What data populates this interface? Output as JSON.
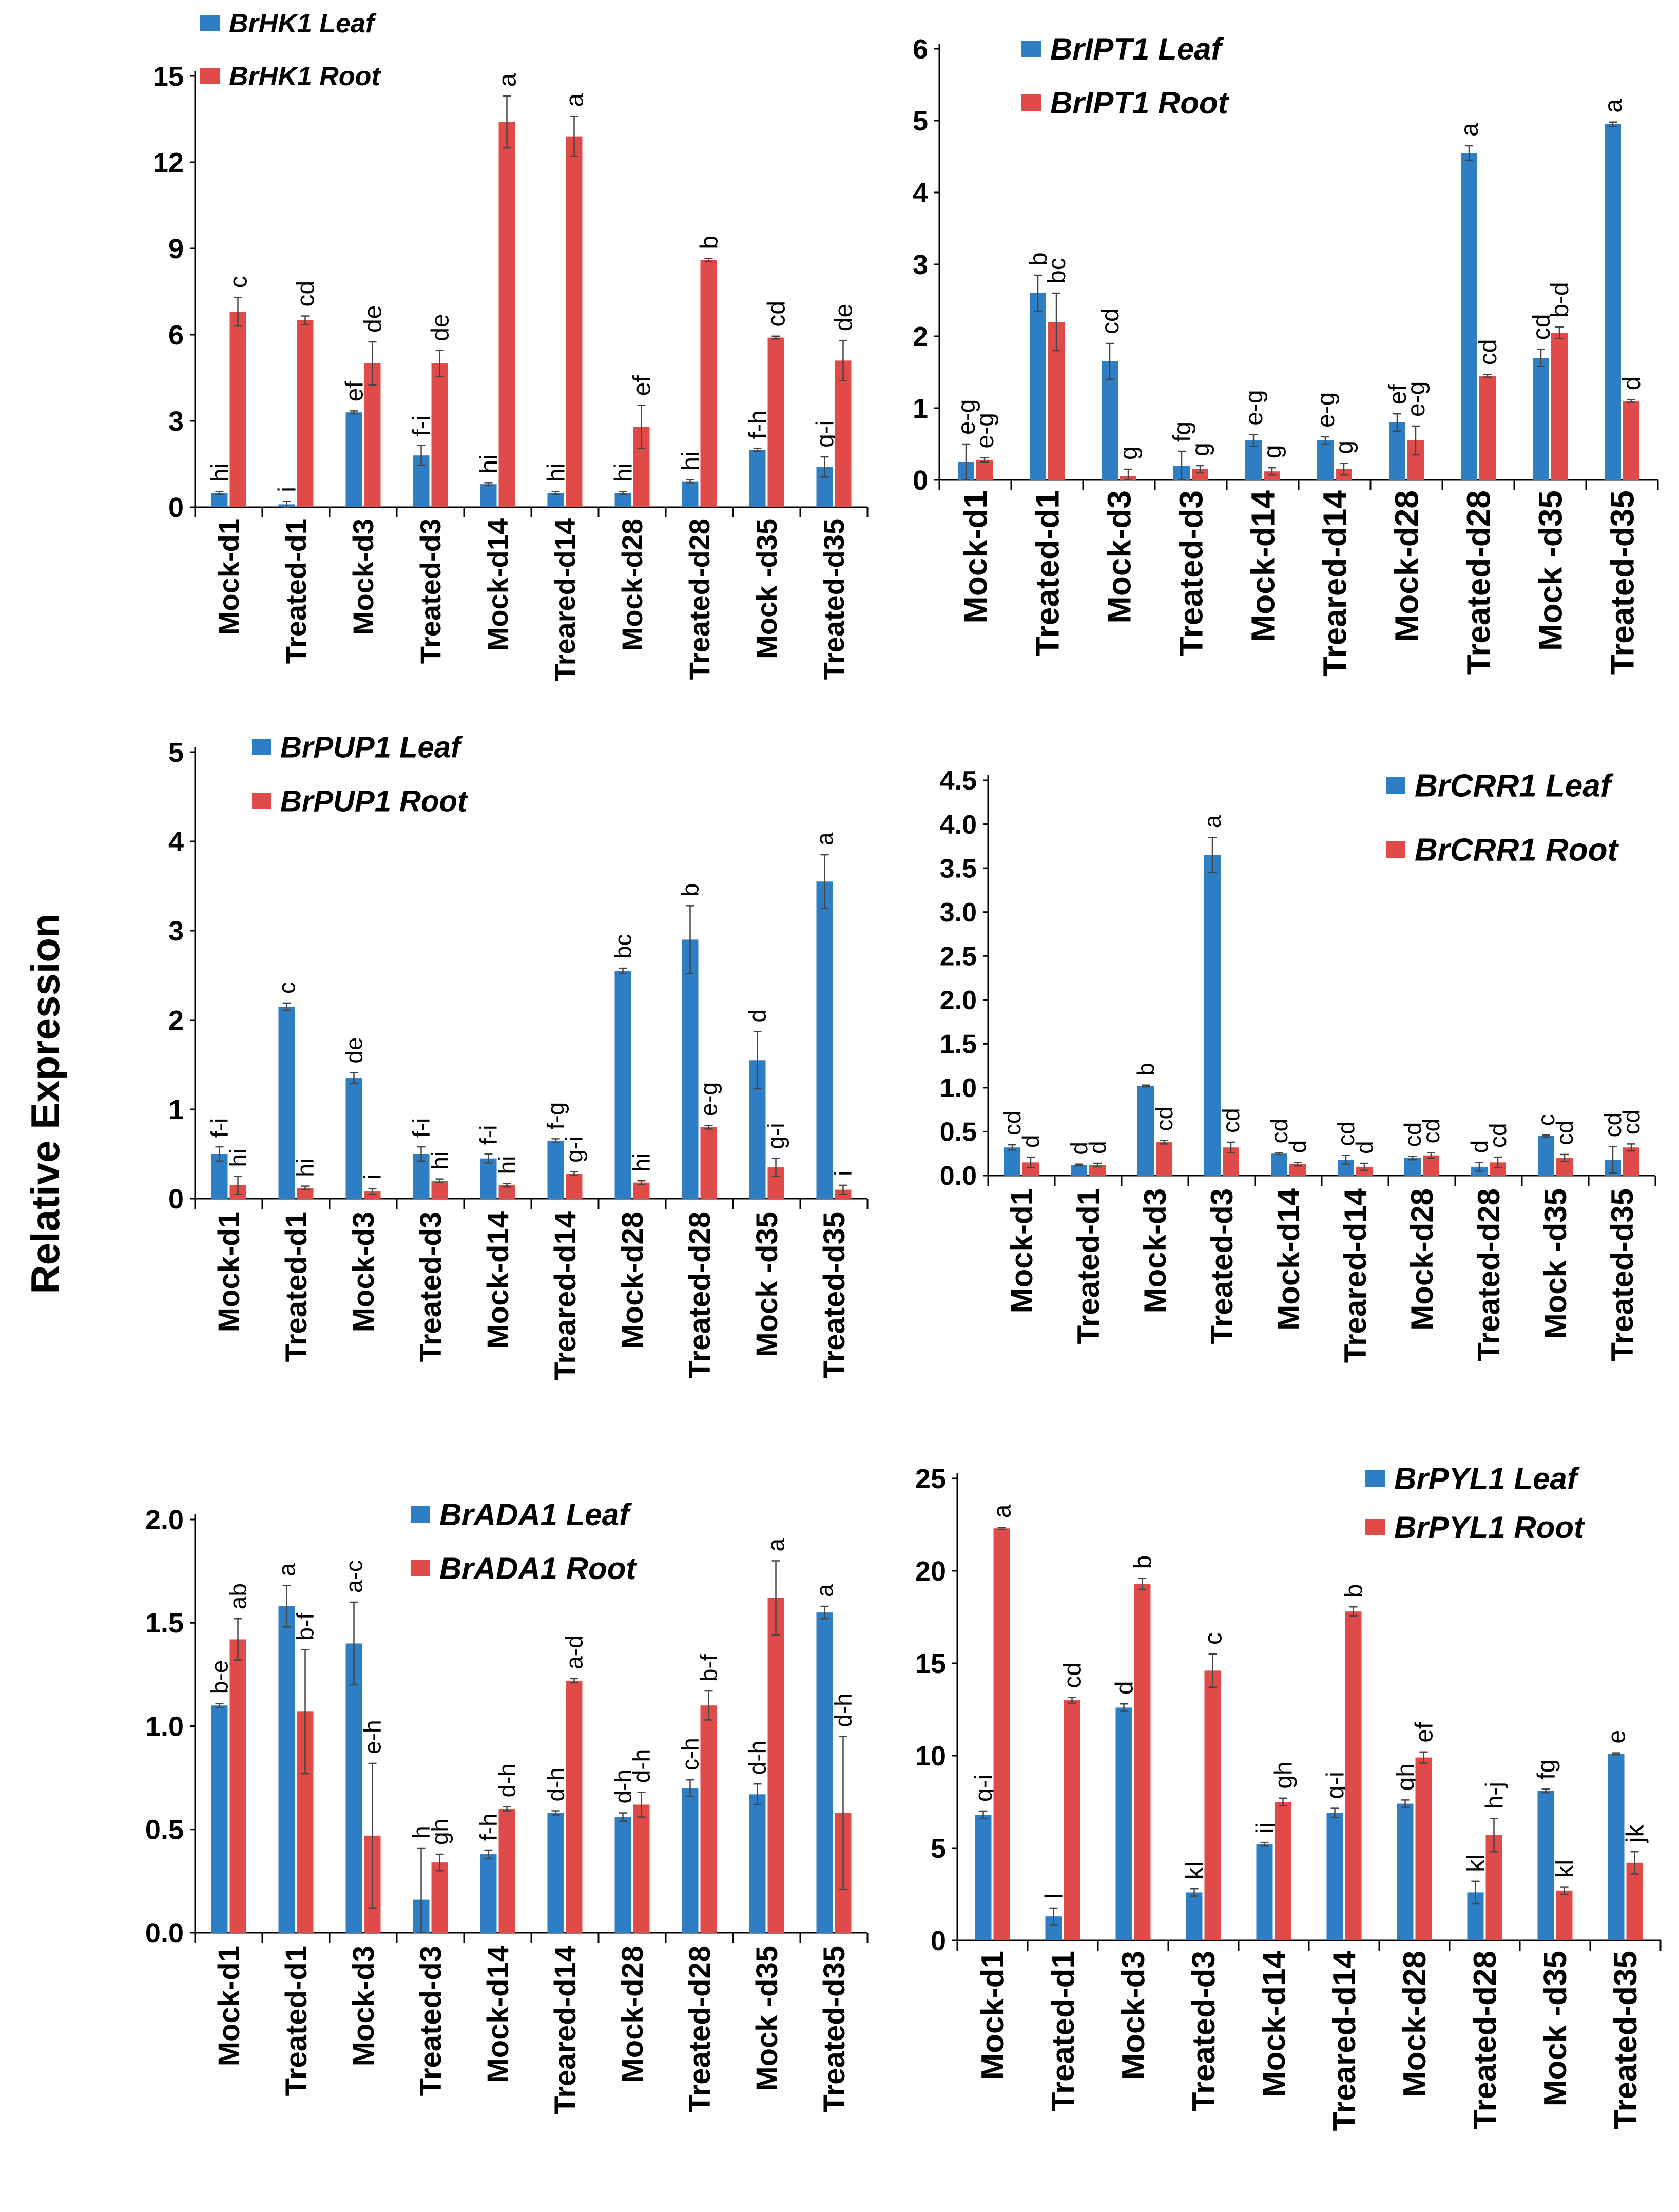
{
  "figure": {
    "ylabel": "Relative Expression",
    "colors": {
      "leaf": "#2E7EC5",
      "root": "#E04A48",
      "axis": "#000000",
      "error": "#444444"
    }
  },
  "chart_data": [
    {
      "type": "bar",
      "id": "hk1",
      "categories": [
        "Mock-d1",
        "Treated-d1",
        "Mock-d3",
        "Treated-d3",
        "Mock-d14",
        "Treared-d14",
        "Mock-d28",
        "Treated-d28",
        "Mock -d35",
        "Treated-d35"
      ],
      "ylim": [
        0,
        15
      ],
      "yticks": [
        0,
        3,
        6,
        9,
        12,
        15
      ],
      "series": [
        {
          "name": "BrHK1 Leaf",
          "color": "#2E7EC5",
          "values": [
            0.5,
            0.1,
            3.3,
            1.8,
            0.8,
            0.5,
            0.5,
            0.9,
            2.0,
            1.4
          ],
          "errors": [
            0.05,
            0.1,
            0.05,
            0.35,
            0.05,
            0.05,
            0.05,
            0.05,
            0.05,
            0.35
          ],
          "labels": [
            "hi",
            "i",
            "ef",
            "f-i",
            "hi",
            "hi",
            "hi",
            "hi",
            "f-h",
            "g-i"
          ]
        },
        {
          "name": "BrHK1 Root",
          "color": "#E04A48",
          "values": [
            6.8,
            6.5,
            5.0,
            5.0,
            13.4,
            12.9,
            2.8,
            8.6,
            5.9,
            5.1
          ],
          "errors": [
            0.5,
            0.15,
            0.75,
            0.45,
            0.9,
            0.7,
            0.75,
            0.05,
            0.05,
            0.7
          ],
          "labels": [
            "c",
            "cd",
            "de",
            "de",
            "a",
            "a",
            "ef",
            "b",
            "cd",
            "de"
          ]
        }
      ]
    },
    {
      "type": "bar",
      "id": "ipt1",
      "categories": [
        "Mock-d1",
        "Treated-d1",
        "Mock-d3",
        "Treated-d3",
        "Mock-d14",
        "Treared-d14",
        "Mock-d28",
        "Treated-d28",
        "Mock -d35",
        "Treated-d35"
      ],
      "ylim": [
        0,
        6
      ],
      "yticks": [
        0,
        1,
        2,
        3,
        4,
        5,
        6
      ],
      "series": [
        {
          "name": "BrIPT1 Leaf",
          "color": "#2E7EC5",
          "values": [
            0.25,
            2.6,
            1.65,
            0.2,
            0.55,
            0.55,
            0.8,
            4.55,
            1.7,
            4.95
          ],
          "errors": [
            0.25,
            0.25,
            0.25,
            0.2,
            0.08,
            0.05,
            0.12,
            0.1,
            0.12,
            0.03
          ],
          "labels": [
            "e-g",
            "b",
            "cd",
            "fg",
            "e-g",
            "e-g",
            "ef",
            "a",
            "cd",
            "a"
          ]
        },
        {
          "name": "BrIPT1 Root",
          "color": "#E04A48",
          "values": [
            0.28,
            2.2,
            0.05,
            0.15,
            0.12,
            0.15,
            0.55,
            1.45,
            2.05,
            1.1
          ],
          "errors": [
            0.03,
            0.4,
            0.1,
            0.05,
            0.05,
            0.08,
            0.2,
            0.02,
            0.08,
            0.02
          ],
          "labels": [
            "e-g",
            "bc",
            "g",
            "g",
            "g",
            "g",
            "e-g",
            "cd",
            "b-d",
            "d"
          ]
        }
      ]
    },
    {
      "type": "bar",
      "id": "pup1",
      "categories": [
        "Mock-d1",
        "Treated-d1",
        "Mock-d3",
        "Treated-d3",
        "Mock-d14",
        "Treared-d14",
        "Mock-d28",
        "Treated-d28",
        "Mock -d35",
        "Treated-d35"
      ],
      "ylim": [
        0,
        5
      ],
      "yticks": [
        0,
        1,
        2,
        3,
        4,
        5
      ],
      "series": [
        {
          "name": "BrPUP1 Leaf",
          "color": "#2E7EC5",
          "values": [
            0.5,
            2.15,
            1.35,
            0.5,
            0.45,
            0.65,
            2.55,
            2.9,
            1.55,
            3.55
          ],
          "errors": [
            0.08,
            0.04,
            0.06,
            0.08,
            0.05,
            0.02,
            0.03,
            0.38,
            0.32,
            0.3
          ],
          "labels": [
            "f-i",
            "c",
            "de",
            "f-i",
            "f-i",
            "f-g",
            "bc",
            "b",
            "d",
            "a"
          ]
        },
        {
          "name": "BrPUP1 Root",
          "color": "#E04A48",
          "values": [
            0.15,
            0.12,
            0.08,
            0.2,
            0.15,
            0.28,
            0.18,
            0.8,
            0.35,
            0.1
          ],
          "errors": [
            0.1,
            0.02,
            0.03,
            0.02,
            0.02,
            0.02,
            0.02,
            0.02,
            0.1,
            0.05
          ],
          "labels": [
            "hi",
            "hi",
            "i",
            "hi",
            "hi",
            "g-i",
            "hi",
            "e-g",
            "g-i",
            "i"
          ]
        }
      ]
    },
    {
      "type": "bar",
      "id": "crr1",
      "categories": [
        "Mock-d1",
        "Treated-d1",
        "Mock-d3",
        "Treated-d3",
        "Mock-d14",
        "Treared-d14",
        "Mock-d28",
        "Treated-d28",
        "Mock -d35",
        "Treated-d35"
      ],
      "ylim": [
        0,
        4.5
      ],
      "yticks": [
        0,
        0.5,
        1.0,
        1.5,
        2.0,
        2.5,
        3.0,
        3.5,
        4.0,
        4.5
      ],
      "series": [
        {
          "name": "BrCRR1 Leaf",
          "color": "#2E7EC5",
          "values": [
            0.32,
            0.12,
            1.02,
            3.65,
            0.25,
            0.18,
            0.2,
            0.1,
            0.45,
            0.18
          ],
          "errors": [
            0.03,
            0.01,
            0.01,
            0.2,
            0.01,
            0.05,
            0.02,
            0.05,
            0.01,
            0.15
          ],
          "labels": [
            "cd",
            "d",
            "b",
            "a",
            "cd",
            "cd",
            "cd",
            "d",
            "c",
            "cd"
          ]
        },
        {
          "name": "BrCRR1 Root",
          "color": "#E04A48",
          "values": [
            0.15,
            0.12,
            0.38,
            0.32,
            0.13,
            0.1,
            0.23,
            0.15,
            0.2,
            0.32
          ],
          "errors": [
            0.06,
            0.02,
            0.02,
            0.06,
            0.02,
            0.04,
            0.03,
            0.06,
            0.04,
            0.04
          ],
          "labels": [
            "d",
            "d",
            "cd",
            "cd",
            "d",
            "d",
            "cd",
            "cd",
            "cd",
            "cd"
          ]
        }
      ]
    },
    {
      "type": "bar",
      "id": "ada1",
      "categories": [
        "Mock-d1",
        "Treated-d1",
        "Mock-d3",
        "Treated-d3",
        "Mock-d14",
        "Treared-d14",
        "Mock-d28",
        "Treated-d28",
        "Mock -d35",
        "Treated-d35"
      ],
      "ylim": [
        0,
        2.0
      ],
      "yticks": [
        0,
        0.5,
        1.0,
        1.5,
        2.0
      ],
      "series": [
        {
          "name": "BrADA1 Leaf",
          "color": "#2E7EC5",
          "values": [
            1.1,
            1.58,
            1.4,
            0.16,
            0.38,
            0.58,
            0.56,
            0.7,
            0.67,
            1.55
          ],
          "errors": [
            0.01,
            0.1,
            0.2,
            0.25,
            0.02,
            0.01,
            0.02,
            0.04,
            0.05,
            0.03
          ],
          "labels": [
            "b-e",
            "a",
            "a-c",
            "h",
            "f-h",
            "d-h",
            "d-h",
            "c-h",
            "d-h",
            "a"
          ]
        },
        {
          "name": "BrADA1 Root",
          "color": "#E04A48",
          "values": [
            1.42,
            1.07,
            0.47,
            0.34,
            0.6,
            1.22,
            0.62,
            1.1,
            1.62,
            0.58
          ],
          "errors": [
            0.1,
            0.3,
            0.35,
            0.04,
            0.01,
            0.01,
            0.06,
            0.07,
            0.18,
            0.37
          ],
          "labels": [
            "ab",
            "b-f",
            "e-h",
            "gh",
            "d-h",
            "a-d",
            "d-h",
            "b-f",
            "a",
            "d-h"
          ]
        }
      ]
    },
    {
      "type": "bar",
      "id": "pyl1",
      "categories": [
        "Mock-d1",
        "Treated-d1",
        "Mock-d3",
        "Treated-d3",
        "Mock-d14",
        "Treared-d14",
        "Mock-d28",
        "Treated-d28",
        "Mock -d35",
        "Treated-d35"
      ],
      "ylim": [
        0,
        25
      ],
      "yticks": [
        0,
        5,
        10,
        15,
        20,
        25
      ],
      "series": [
        {
          "name": "BrPYL1 Leaf",
          "color": "#2E7EC5",
          "values": [
            6.8,
            1.3,
            12.6,
            2.6,
            5.2,
            6.9,
            7.4,
            2.6,
            8.1,
            10.1
          ],
          "errors": [
            0.2,
            0.45,
            0.2,
            0.2,
            0.1,
            0.25,
            0.2,
            0.6,
            0.1,
            0.05
          ],
          "labels": [
            "g-i",
            "l",
            "d",
            "kl",
            "ij",
            "g-i",
            "gh",
            "kl",
            "fg",
            "e"
          ]
        },
        {
          "name": "BrPYL1 Root",
          "color": "#E04A48",
          "values": [
            22.3,
            13.0,
            19.3,
            14.6,
            7.5,
            17.8,
            9.9,
            5.7,
            2.7,
            4.2
          ],
          "errors": [
            0.05,
            0.15,
            0.3,
            0.9,
            0.2,
            0.25,
            0.3,
            0.9,
            0.2,
            0.6
          ],
          "labels": [
            "a",
            "cd",
            "b",
            "c",
            "gh",
            "b",
            "ef",
            "h-j",
            "kl",
            "jk"
          ]
        }
      ]
    }
  ]
}
